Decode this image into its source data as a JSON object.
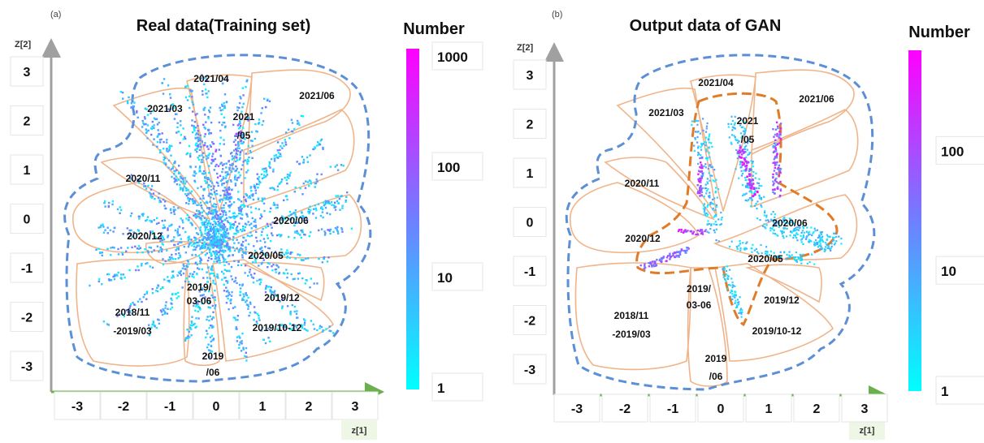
{
  "colors": {
    "axis_green": "#6ab04c",
    "axis_gray": "#a0a0a0",
    "outline_blue": "#5b8fd6",
    "outline_orange": "#e07b28",
    "region_line": "#f0b48a",
    "cmap_low": "#00ffff",
    "cmap_mid": "#6f7fff",
    "cmap_high": "#ff00ff"
  },
  "chart_data": [
    {
      "type": "heatmap",
      "panel_label": "(a)",
      "title": "Real data(Training set)",
      "xlabel": "z[1]",
      "ylabel": "Z[2]",
      "x_ticks": [
        "-3",
        "-2",
        "-1",
        "0",
        "1",
        "2",
        "3"
      ],
      "y_ticks": [
        "3",
        "2",
        "1",
        "0",
        "-1",
        "-2",
        "-3"
      ],
      "xlim": [
        -3.5,
        3.5
      ],
      "ylim": [
        -3.5,
        3.5
      ],
      "colorbar": {
        "title": "Number",
        "scale": "log",
        "ticks": [
          "1000",
          "100",
          "10",
          "1"
        ]
      },
      "regions": [
        "2021/04",
        "2021/03",
        "2021\n/05",
        "2021/06",
        "2020/11",
        "2020/06",
        "2020/12",
        "2020/05",
        "2019/\n03-06",
        "2019/12",
        "2018/11\n-2019/03",
        "2019/10-12",
        "2019\n/06"
      ]
    },
    {
      "type": "heatmap",
      "panel_label": "(b)",
      "title": "Output data of GAN",
      "xlabel": "z[1]",
      "ylabel": "Z[2]",
      "x_ticks": [
        "-3",
        "-2",
        "-1",
        "0",
        "1",
        "2",
        "3"
      ],
      "y_ticks": [
        "3",
        "2",
        "1",
        "0",
        "-1",
        "-2",
        "-3"
      ],
      "xlim": [
        -3.5,
        3.5
      ],
      "ylim": [
        -3.5,
        3.5
      ],
      "colorbar": {
        "title": "Number",
        "scale": "log",
        "ticks": [
          "100",
          "10",
          "1"
        ]
      },
      "regions": [
        "2021/04",
        "2021/03",
        "2021\n/05",
        "2021/06",
        "2020/11",
        "2020/06",
        "2020/12",
        "2020/05",
        "2019/\n03-06",
        "2019/12",
        "2018/11\n-2019/03",
        "2019/10-12",
        "2019\n/06"
      ]
    }
  ]
}
